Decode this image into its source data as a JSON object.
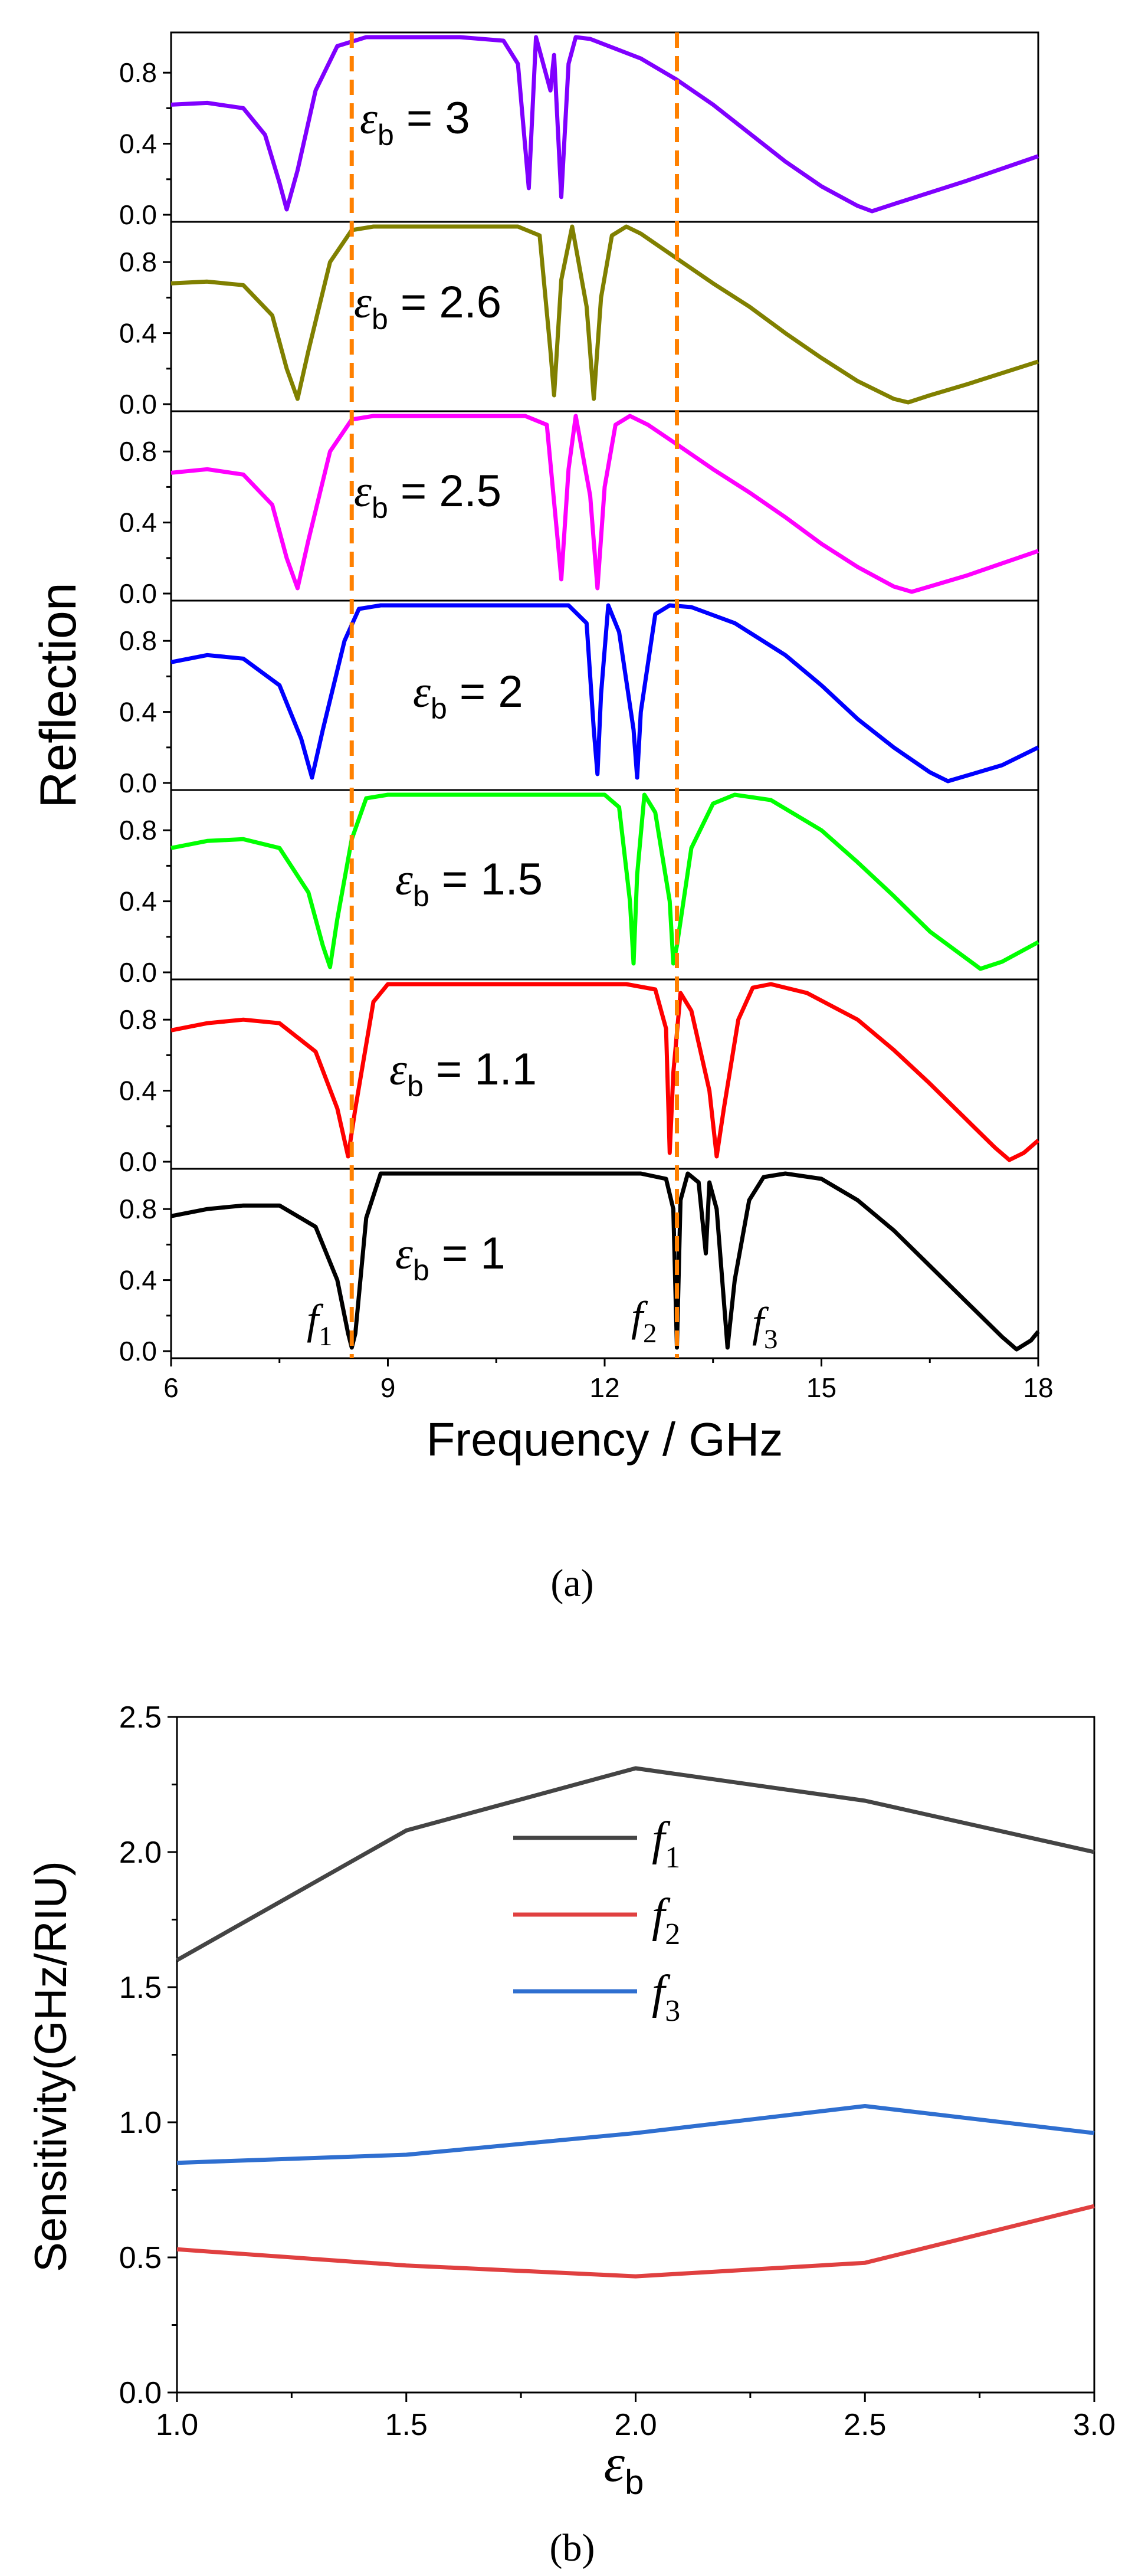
{
  "captions": {
    "a": "(a)",
    "b": "(b)"
  },
  "chart_data": [
    {
      "type": "line",
      "panel": "a",
      "title": "",
      "xlabel": "Frequency / GHz",
      "ylabel": "Reflection",
      "xlim": [
        6,
        18
      ],
      "xticks": [
        "6",
        "9",
        "12",
        "15",
        "18"
      ],
      "ylim": [
        0,
        1
      ],
      "yticks": [
        "0.0",
        "0.4",
        "0.8"
      ],
      "grid": false,
      "subplots_stacked": 7,
      "vlines": {
        "x": [
          8.5,
          13.0
        ],
        "color": "#ff8000",
        "style": "dashed"
      },
      "series": [
        {
          "label_text": "= 3",
          "color": "#8000ff",
          "points": [
            [
              6,
              0.62
            ],
            [
              6.5,
              0.63
            ],
            [
              7.0,
              0.6
            ],
            [
              7.3,
              0.45
            ],
            [
              7.5,
              0.18
            ],
            [
              7.6,
              0.03
            ],
            [
              7.75,
              0.25
            ],
            [
              8.0,
              0.7
            ],
            [
              8.3,
              0.95
            ],
            [
              8.7,
              1.0
            ],
            [
              10.0,
              1.0
            ],
            [
              10.6,
              0.98
            ],
            [
              10.8,
              0.85
            ],
            [
              10.95,
              0.15
            ],
            [
              11.05,
              1.0
            ],
            [
              11.25,
              0.7
            ],
            [
              11.3,
              0.9
            ],
            [
              11.4,
              0.1
            ],
            [
              11.5,
              0.85
            ],
            [
              11.6,
              1.0
            ],
            [
              11.8,
              0.99
            ],
            [
              12.5,
              0.88
            ],
            [
              13.0,
              0.76
            ],
            [
              13.5,
              0.62
            ],
            [
              14.0,
              0.46
            ],
            [
              14.5,
              0.3
            ],
            [
              15.0,
              0.16
            ],
            [
              15.5,
              0.05
            ],
            [
              15.7,
              0.02
            ],
            [
              16.0,
              0.06
            ],
            [
              17.0,
              0.19
            ],
            [
              18.0,
              0.33
            ]
          ]
        },
        {
          "label_text": "= 2.6",
          "color": "#808000",
          "points": [
            [
              6,
              0.68
            ],
            [
              6.5,
              0.69
            ],
            [
              7.0,
              0.67
            ],
            [
              7.4,
              0.5
            ],
            [
              7.6,
              0.2
            ],
            [
              7.75,
              0.03
            ],
            [
              7.9,
              0.3
            ],
            [
              8.2,
              0.8
            ],
            [
              8.5,
              0.98
            ],
            [
              8.8,
              1.0
            ],
            [
              10.8,
              1.0
            ],
            [
              11.1,
              0.95
            ],
            [
              11.25,
              0.3
            ],
            [
              11.3,
              0.05
            ],
            [
              11.4,
              0.7
            ],
            [
              11.55,
              1.0
            ],
            [
              11.75,
              0.55
            ],
            [
              11.85,
              0.03
            ],
            [
              11.95,
              0.6
            ],
            [
              12.1,
              0.95
            ],
            [
              12.3,
              1.0
            ],
            [
              12.5,
              0.96
            ],
            [
              13.0,
              0.82
            ],
            [
              13.5,
              0.68
            ],
            [
              14.0,
              0.55
            ],
            [
              14.5,
              0.4
            ],
            [
              15.0,
              0.26
            ],
            [
              15.5,
              0.13
            ],
            [
              16.0,
              0.03
            ],
            [
              16.2,
              0.01
            ],
            [
              16.5,
              0.05
            ],
            [
              17.0,
              0.11
            ],
            [
              18.0,
              0.24
            ]
          ]
        },
        {
          "label_text": "= 2.5",
          "color": "#ff00ff",
          "points": [
            [
              6,
              0.68
            ],
            [
              6.5,
              0.7
            ],
            [
              7.0,
              0.67
            ],
            [
              7.4,
              0.5
            ],
            [
              7.6,
              0.2
            ],
            [
              7.75,
              0.03
            ],
            [
              7.9,
              0.3
            ],
            [
              8.2,
              0.8
            ],
            [
              8.5,
              0.98
            ],
            [
              8.8,
              1.0
            ],
            [
              10.9,
              1.0
            ],
            [
              11.2,
              0.95
            ],
            [
              11.35,
              0.3
            ],
            [
              11.4,
              0.08
            ],
            [
              11.5,
              0.7
            ],
            [
              11.6,
              1.0
            ],
            [
              11.8,
              0.55
            ],
            [
              11.9,
              0.03
            ],
            [
              12.0,
              0.6
            ],
            [
              12.15,
              0.95
            ],
            [
              12.35,
              1.0
            ],
            [
              12.6,
              0.95
            ],
            [
              13.0,
              0.84
            ],
            [
              13.5,
              0.7
            ],
            [
              14.0,
              0.57
            ],
            [
              14.5,
              0.43
            ],
            [
              15.0,
              0.28
            ],
            [
              15.5,
              0.15
            ],
            [
              16.0,
              0.04
            ],
            [
              16.25,
              0.01
            ],
            [
              16.5,
              0.04
            ],
            [
              17.0,
              0.1
            ],
            [
              18.0,
              0.24
            ]
          ]
        },
        {
          "label_text": "= 2",
          "color": "#0000ff",
          "points": [
            [
              6,
              0.68
            ],
            [
              6.5,
              0.72
            ],
            [
              7.0,
              0.7
            ],
            [
              7.5,
              0.55
            ],
            [
              7.8,
              0.25
            ],
            [
              7.95,
              0.03
            ],
            [
              8.1,
              0.3
            ],
            [
              8.4,
              0.8
            ],
            [
              8.6,
              0.98
            ],
            [
              8.9,
              1.0
            ],
            [
              11.5,
              1.0
            ],
            [
              11.75,
              0.9
            ],
            [
              11.85,
              0.3
            ],
            [
              11.9,
              0.05
            ],
            [
              11.95,
              0.5
            ],
            [
              12.05,
              1.0
            ],
            [
              12.2,
              0.85
            ],
            [
              12.4,
              0.3
            ],
            [
              12.45,
              0.03
            ],
            [
              12.5,
              0.4
            ],
            [
              12.7,
              0.95
            ],
            [
              12.9,
              1.0
            ],
            [
              13.2,
              0.99
            ],
            [
              13.8,
              0.9
            ],
            [
              14.5,
              0.72
            ],
            [
              15.0,
              0.55
            ],
            [
              15.5,
              0.36
            ],
            [
              16.0,
              0.2
            ],
            [
              16.5,
              0.06
            ],
            [
              16.75,
              0.01
            ],
            [
              17.0,
              0.04
            ],
            [
              17.5,
              0.1
            ],
            [
              18.0,
              0.2
            ]
          ]
        },
        {
          "label_text": "= 1.5",
          "color": "#00ff00",
          "points": [
            [
              6,
              0.7
            ],
            [
              6.5,
              0.74
            ],
            [
              7.0,
              0.75
            ],
            [
              7.5,
              0.7
            ],
            [
              7.9,
              0.45
            ],
            [
              8.1,
              0.15
            ],
            [
              8.2,
              0.03
            ],
            [
              8.3,
              0.3
            ],
            [
              8.5,
              0.75
            ],
            [
              8.7,
              0.98
            ],
            [
              9.0,
              1.0
            ],
            [
              12.0,
              1.0
            ],
            [
              12.2,
              0.93
            ],
            [
              12.35,
              0.4
            ],
            [
              12.4,
              0.05
            ],
            [
              12.45,
              0.55
            ],
            [
              12.55,
              1.0
            ],
            [
              12.7,
              0.9
            ],
            [
              12.9,
              0.4
            ],
            [
              12.95,
              0.05
            ],
            [
              13.0,
              0.15
            ],
            [
              13.2,
              0.7
            ],
            [
              13.5,
              0.95
            ],
            [
              13.8,
              1.0
            ],
            [
              14.3,
              0.97
            ],
            [
              15.0,
              0.8
            ],
            [
              15.5,
              0.62
            ],
            [
              16.0,
              0.43
            ],
            [
              16.5,
              0.23
            ],
            [
              17.0,
              0.08
            ],
            [
              17.2,
              0.02
            ],
            [
              17.5,
              0.06
            ],
            [
              18.0,
              0.17
            ]
          ]
        },
        {
          "label_text": "= 1.1",
          "color": "#ff0000",
          "points": [
            [
              6,
              0.74
            ],
            [
              6.5,
              0.78
            ],
            [
              7.0,
              0.8
            ],
            [
              7.5,
              0.78
            ],
            [
              8.0,
              0.62
            ],
            [
              8.3,
              0.3
            ],
            [
              8.45,
              0.03
            ],
            [
              8.55,
              0.3
            ],
            [
              8.8,
              0.9
            ],
            [
              9.0,
              1.0
            ],
            [
              12.3,
              1.0
            ],
            [
              12.7,
              0.97
            ],
            [
              12.85,
              0.75
            ],
            [
              12.9,
              0.05
            ],
            [
              12.95,
              0.5
            ],
            [
              13.05,
              0.95
            ],
            [
              13.2,
              0.85
            ],
            [
              13.45,
              0.4
            ],
            [
              13.55,
              0.03
            ],
            [
              13.65,
              0.3
            ],
            [
              13.85,
              0.8
            ],
            [
              14.05,
              0.98
            ],
            [
              14.3,
              1.0
            ],
            [
              14.8,
              0.95
            ],
            [
              15.5,
              0.8
            ],
            [
              16.0,
              0.63
            ],
            [
              16.5,
              0.44
            ],
            [
              17.0,
              0.24
            ],
            [
              17.4,
              0.08
            ],
            [
              17.6,
              0.01
            ],
            [
              17.8,
              0.05
            ],
            [
              18.0,
              0.12
            ]
          ]
        },
        {
          "label_text": "= 1",
          "color": "#000000",
          "points": [
            [
              6,
              0.76
            ],
            [
              6.5,
              0.8
            ],
            [
              7.0,
              0.82
            ],
            [
              7.5,
              0.82
            ],
            [
              8.0,
              0.7
            ],
            [
              8.3,
              0.4
            ],
            [
              8.45,
              0.1
            ],
            [
              8.5,
              0.02
            ],
            [
              8.55,
              0.1
            ],
            [
              8.7,
              0.75
            ],
            [
              8.9,
              1.0
            ],
            [
              12.5,
              1.0
            ],
            [
              12.85,
              0.97
            ],
            [
              12.95,
              0.8
            ],
            [
              13.0,
              0.02
            ],
            [
              13.05,
              0.85
            ],
            [
              13.15,
              1.0
            ],
            [
              13.3,
              0.95
            ],
            [
              13.4,
              0.55
            ],
            [
              13.45,
              0.95
            ],
            [
              13.55,
              0.8
            ],
            [
              13.7,
              0.02
            ],
            [
              13.8,
              0.4
            ],
            [
              14.0,
              0.85
            ],
            [
              14.2,
              0.98
            ],
            [
              14.5,
              1.0
            ],
            [
              15.0,
              0.97
            ],
            [
              15.5,
              0.85
            ],
            [
              16.0,
              0.68
            ],
            [
              16.5,
              0.48
            ],
            [
              17.0,
              0.28
            ],
            [
              17.5,
              0.08
            ],
            [
              17.7,
              0.01
            ],
            [
              17.9,
              0.06
            ],
            [
              18.0,
              0.11
            ]
          ]
        }
      ],
      "annotations": [
        "f1",
        "f2",
        "f3"
      ]
    },
    {
      "type": "line",
      "panel": "b",
      "title": "",
      "xlabel": "εb",
      "ylabel": "Sensitivity(GHz/RIU)",
      "xlim": [
        1.0,
        3.0
      ],
      "xticks": [
        "1.0",
        "1.5",
        "2.0",
        "2.5",
        "3.0"
      ],
      "ylim": [
        0.0,
        2.5
      ],
      "yticks": [
        "0.0",
        "0.5",
        "1.0",
        "1.5",
        "2.0",
        "2.5"
      ],
      "grid": false,
      "legend_position": "center",
      "categories": [
        1.0,
        1.5,
        2.0,
        2.5,
        3.0
      ],
      "series": [
        {
          "name": "f1",
          "color": "#444444",
          "values": [
            1.6,
            2.08,
            2.31,
            2.19,
            2.0
          ]
        },
        {
          "name": "f2",
          "color": "#e04040",
          "values": [
            0.53,
            0.47,
            0.43,
            0.48,
            0.69
          ]
        },
        {
          "name": "f3",
          "color": "#2f6fd0",
          "values": [
            0.85,
            0.88,
            0.96,
            1.06,
            0.96
          ]
        }
      ]
    }
  ]
}
